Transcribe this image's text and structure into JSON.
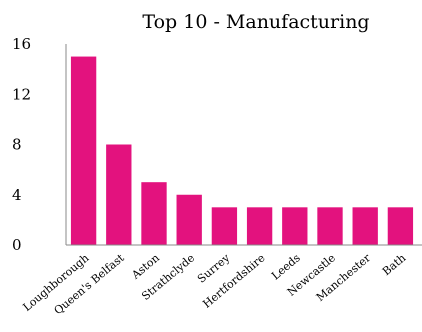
{
  "chart_data": {
    "type": "bar",
    "title": "Top 10 - Manufacturing",
    "categories": [
      "Loughborough",
      "Queen's Belfast",
      "Aston",
      "Strathclyde",
      "Surrey",
      "Hertfordshire",
      "Leeds",
      "Newcastle",
      "Manchester",
      "Bath"
    ],
    "values": [
      15,
      8,
      5,
      4,
      3,
      3,
      3,
      3,
      3,
      3
    ],
    "ylim": [
      0,
      16
    ],
    "yticks": [
      "0",
      "4",
      "8",
      "12",
      "16"
    ],
    "bar_color": "#e3127e",
    "grid": false
  }
}
